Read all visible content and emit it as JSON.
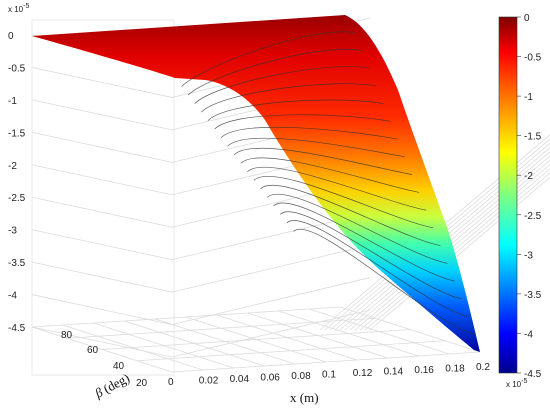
{
  "chart_data": {
    "type": "surface3d",
    "z_exponent_label": "x 10",
    "z_exponent_power": "-5",
    "x_axis": {
      "label": "x (m)",
      "ticks": [
        "0",
        "0.02",
        "0.04",
        "0.06",
        "0.08",
        "0.1",
        "0.12",
        "0.14",
        "0.16",
        "0.18",
        "0.2"
      ],
      "range": [
        0,
        0.21
      ]
    },
    "beta_axis": {
      "label_symbol": "β",
      "label_unit": "(deg)",
      "ticks": [
        "20",
        "40",
        "60",
        "80"
      ],
      "range": [
        0,
        90
      ]
    },
    "z_axis": {
      "ticks": [
        "0",
        "-0.5",
        "-1",
        "-1.5",
        "-2",
        "-2.5",
        "-3",
        "-3.5",
        "-4",
        "-4.5"
      ],
      "range": [
        -4.5,
        0
      ]
    },
    "colorbar": {
      "ticks": [
        "0",
        "-0.5",
        "-1",
        "-1.5",
        "-2",
        "-2.5",
        "-3",
        "-3.5",
        "-4",
        "-4.5"
      ],
      "exponent_label": "x 10",
      "exponent_power": "-5",
      "colors": [
        "#00008f",
        "#0000ff",
        "#0080ff",
        "#00ffff",
        "#80ff80",
        "#ffff00",
        "#ff8000",
        "#ff0000",
        "#800000"
      ]
    },
    "surface": {
      "description_values": {
        "deflection_at_x0": 0,
        "max_deflection_at_x_0_21_beta_0": -4.5
      }
    },
    "grid": true
  }
}
